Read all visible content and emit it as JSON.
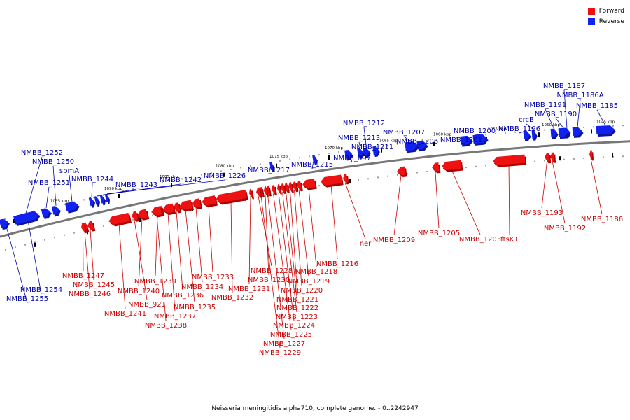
{
  "title": "Neisseria meningitidis alpha710, complete genome. - 0..2242947",
  "colors": {
    "forward": "#ee1111",
    "reverse": "#1122ee",
    "forward_label": "#cc0000",
    "reverse_label": "#0000aa",
    "axis": "#777777"
  },
  "legend": {
    "forward_label": "Forward",
    "reverse_label": "Reverse"
  },
  "scale": [
    "1045 kbp",
    "1050 kbp",
    "1055 kbp",
    "1060 kbp",
    "1065 kbp",
    "1070 kbp",
    "1075 kbp",
    "1080 kbp",
    "1085 kbp",
    "1090 kbp",
    "1095 kbp"
  ],
  "genes": [
    {
      "name": "NMBB_1185",
      "strand": "reverse"
    },
    {
      "name": "NMBB_1186A",
      "strand": "reverse"
    },
    {
      "name": "NMBB_1187",
      "strand": "reverse"
    },
    {
      "name": "NMBB_1190",
      "strand": "reverse"
    },
    {
      "name": "NMBB_1191",
      "strand": "reverse"
    },
    {
      "name": "crcB",
      "strand": "reverse"
    },
    {
      "name": "NMBB_1196",
      "strand": "reverse"
    },
    {
      "name": "NMBB_1200",
      "strand": "reverse"
    },
    {
      "name": "NMBB_1201",
      "strand": "reverse"
    },
    {
      "name": "NMBB_1206",
      "strand": "reverse"
    },
    {
      "name": "NMBB_1207",
      "strand": "reverse"
    },
    {
      "name": "NMBB_1211",
      "strand": "reverse"
    },
    {
      "name": "NMBB_1212",
      "strand": "reverse"
    },
    {
      "name": "NMBB_1213",
      "strand": "reverse"
    },
    {
      "name": "NMBB_897",
      "strand": "reverse"
    },
    {
      "name": "NMBB_1215",
      "strand": "reverse"
    },
    {
      "name": "NMBB_1217",
      "strand": "reverse"
    },
    {
      "name": "NMBB_1226",
      "strand": "reverse"
    },
    {
      "name": "NMBB_1242",
      "strand": "reverse"
    },
    {
      "name": "NMBB_1243",
      "strand": "reverse"
    },
    {
      "name": "NMBB_1244",
      "strand": "reverse"
    },
    {
      "name": "sbmA",
      "strand": "reverse"
    },
    {
      "name": "NMBB_1250",
      "strand": "reverse"
    },
    {
      "name": "NMBB_1251",
      "strand": "reverse"
    },
    {
      "name": "NMBB_1252",
      "strand": "reverse"
    },
    {
      "name": "NMBB_1254",
      "strand": "reverse"
    },
    {
      "name": "NMBB_1255",
      "strand": "reverse"
    },
    {
      "name": "NMBB_1186",
      "strand": "forward"
    },
    {
      "name": "NMBB_1192",
      "strand": "forward"
    },
    {
      "name": "NMBB_1193",
      "strand": "forward"
    },
    {
      "name": "ftsK1",
      "strand": "forward"
    },
    {
      "name": "NMBB_1203",
      "strand": "forward"
    },
    {
      "name": "NMBB_1205",
      "strand": "forward"
    },
    {
      "name": "NMBB_1209",
      "strand": "forward"
    },
    {
      "name": "ner",
      "strand": "forward"
    },
    {
      "name": "NMBB_1216",
      "strand": "forward"
    },
    {
      "name": "NMBB_1218",
      "strand": "forward"
    },
    {
      "name": "NMBB_1219",
      "strand": "forward"
    },
    {
      "name": "NMBB_1220",
      "strand": "forward"
    },
    {
      "name": "NMBB_1221",
      "strand": "forward"
    },
    {
      "name": "NMBB_1222",
      "strand": "forward"
    },
    {
      "name": "NMBB_1223",
      "strand": "forward"
    },
    {
      "name": "NMBB_1224",
      "strand": "forward"
    },
    {
      "name": "NMBB_1225",
      "strand": "forward"
    },
    {
      "name": "NMBB_1227",
      "strand": "forward"
    },
    {
      "name": "NMBB_1229",
      "strand": "forward"
    },
    {
      "name": "NMBB_1228",
      "strand": "forward"
    },
    {
      "name": "NMBB_1230",
      "strand": "forward"
    },
    {
      "name": "NMBB_1231",
      "strand": "forward"
    },
    {
      "name": "NMBB_1232",
      "strand": "forward"
    },
    {
      "name": "NMBB_1233",
      "strand": "forward"
    },
    {
      "name": "NMBB_1234",
      "strand": "forward"
    },
    {
      "name": "NMBB_1235",
      "strand": "forward"
    },
    {
      "name": "NMBB_1236",
      "strand": "forward"
    },
    {
      "name": "NMBB_1237",
      "strand": "forward"
    },
    {
      "name": "NMBB_1238",
      "strand": "forward"
    },
    {
      "name": "NMBB_1239",
      "strand": "forward"
    },
    {
      "name": "NMBB_1240",
      "strand": "forward"
    },
    {
      "name": "NMBB_921",
      "strand": "forward"
    },
    {
      "name": "NMBB_1241",
      "strand": "forward"
    },
    {
      "name": "NMBB_1245",
      "strand": "forward"
    },
    {
      "name": "NMBB_1246",
      "strand": "forward"
    },
    {
      "name": "NMBB_1247",
      "strand": "forward"
    }
  ]
}
